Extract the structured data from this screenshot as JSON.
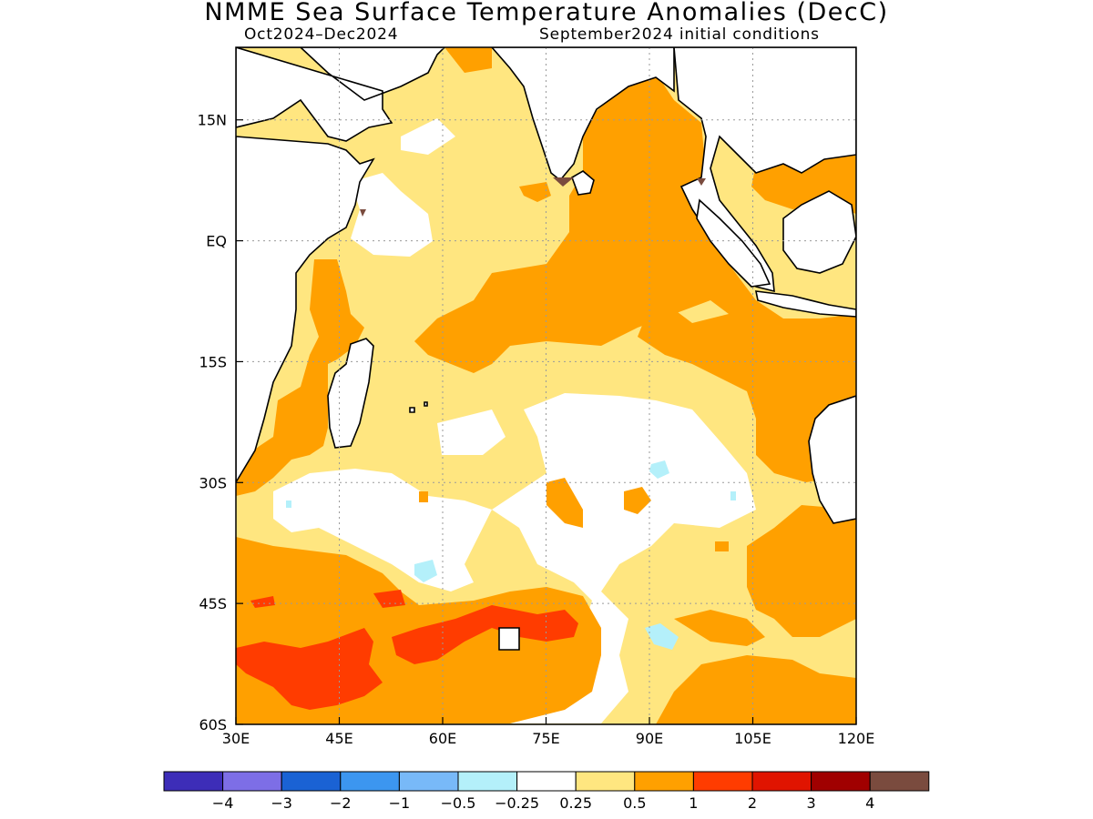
{
  "header": {
    "title": "NMME Sea Surface Temperature Anomalies (DecC)",
    "period": "Oct2024–Dec2024",
    "initial_conditions": "September2024 initial conditions"
  },
  "map": {
    "lon_range": [
      30,
      120
    ],
    "lat_range": [
      -60,
      24
    ],
    "lon_ticks": [
      "30E",
      "45E",
      "60E",
      "75E",
      "90E",
      "105E",
      "120E"
    ],
    "lat_ticks": [
      "15N",
      "EQ",
      "15S",
      "30S",
      "45S",
      "60S"
    ],
    "grid": "dotted"
  },
  "colorbar": {
    "colors": [
      "#3d2db8",
      "#7d6ee6",
      "#1a62d4",
      "#3c96f0",
      "#78b9f8",
      "#b4f0fa",
      "#ffffff",
      "#ffe680",
      "#ffa000",
      "#ff3c00",
      "#e01400",
      "#a00000",
      "#7a4b3e"
    ],
    "labels": [
      "−4",
      "−3",
      "−2",
      "−1",
      "−0.5",
      "−0.25",
      "0.25",
      "0.5",
      "1",
      "2",
      "3",
      "4"
    ]
  }
}
